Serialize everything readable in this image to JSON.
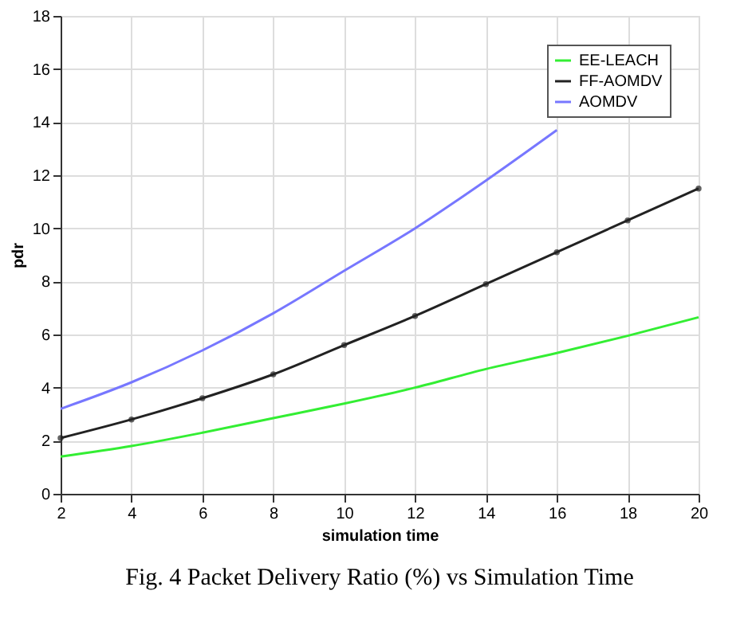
{
  "chart_data": {
    "type": "line",
    "title": "Fig. 4 Packet Delivery Ratio (%) vs Simulation Time",
    "xlabel": "simulation time",
    "ylabel": "pdr",
    "x": [
      2,
      4,
      6,
      8,
      10,
      12,
      14,
      16,
      18,
      20
    ],
    "series": [
      {
        "name": "EE-LEACH",
        "color": "#33ee33",
        "marker": "none",
        "values": [
          1.4,
          1.8,
          2.3,
          2.85,
          3.4,
          4.0,
          4.7,
          5.3,
          5.95,
          6.65
        ]
      },
      {
        "name": "FF-AOMDV",
        "color": "#222222",
        "marker": "circle",
        "values": [
          2.1,
          2.8,
          3.6,
          4.5,
          5.6,
          6.7,
          7.9,
          9.1,
          10.3,
          11.5
        ]
      },
      {
        "name": "AOMDV",
        "color": "#7777ff",
        "marker": "none",
        "values": [
          3.2,
          4.2,
          5.4,
          6.8,
          8.4,
          10.0,
          11.8,
          13.7,
          null,
          null
        ]
      }
    ],
    "xlim": [
      2,
      20
    ],
    "xticks": [
      2,
      4,
      6,
      8,
      10,
      12,
      14,
      16,
      18,
      20
    ],
    "ylim": [
      0,
      18
    ],
    "yticks": [
      0,
      2,
      4,
      6,
      8,
      10,
      12,
      14,
      16,
      18
    ],
    "grid": true,
    "legend": "top right",
    "line_style": "solid"
  }
}
